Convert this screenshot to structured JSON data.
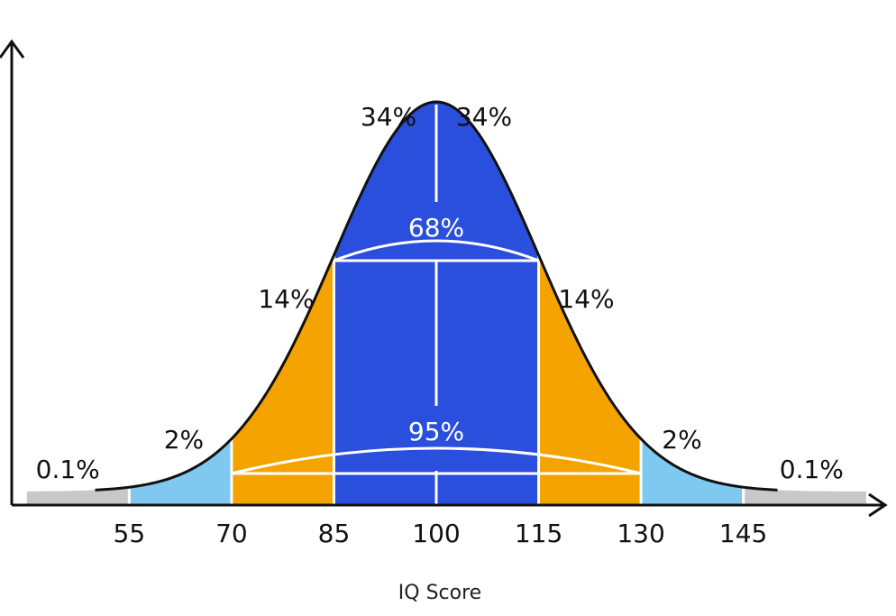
{
  "chart_data": {
    "type": "area",
    "title": "",
    "xlabel": "IQ Score",
    "ylabel": "",
    "mean": 100,
    "sd": 15,
    "xlim": [
      40,
      163
    ],
    "ticks": [
      55,
      70,
      85,
      100,
      115,
      130,
      145
    ],
    "tick_labels": [
      "55",
      "70",
      "85",
      "100",
      "115",
      "130",
      "145"
    ],
    "bands": [
      {
        "from": 40,
        "to": 55,
        "color": "#c8c8c8"
      },
      {
        "from": 55,
        "to": 70,
        "color": "#7fc8f0"
      },
      {
        "from": 70,
        "to": 85,
        "color": "#f5a300"
      },
      {
        "from": 85,
        "to": 115,
        "color": "#2a4fdc"
      },
      {
        "from": 115,
        "to": 130,
        "color": "#f5a300"
      },
      {
        "from": 130,
        "to": 145,
        "color": "#7fc8f0"
      },
      {
        "from": 145,
        "to": 163,
        "color": "#c8c8c8"
      }
    ],
    "band_percentages": [
      {
        "label": "0.1%",
        "at": 46
      },
      {
        "label": "2%",
        "at": 63
      },
      {
        "label": "14%",
        "at": 78
      },
      {
        "label": "34%",
        "at": 93
      },
      {
        "label": "34%",
        "at": 107
      },
      {
        "label": "14%",
        "at": 122
      },
      {
        "label": "2%",
        "at": 136
      },
      {
        "label": "0.1%",
        "at": 155
      }
    ],
    "brackets": [
      {
        "label": "68%",
        "from": 85,
        "to": 115
      },
      {
        "label": "95%",
        "from": 70,
        "to": 130
      }
    ]
  }
}
